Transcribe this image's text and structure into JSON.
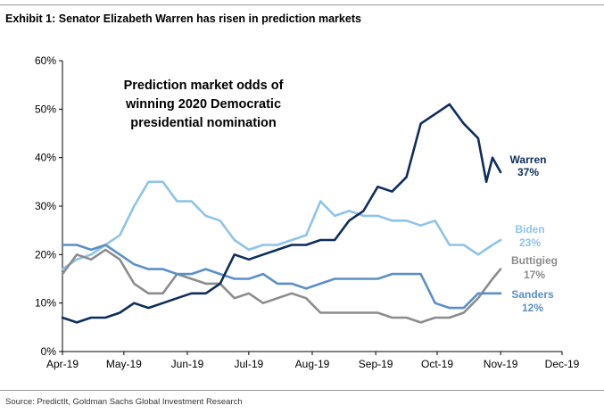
{
  "exhibit_title": "Exhibit 1: Senator Elizabeth Warren has risen in prediction markets",
  "source": "Source: PredictIt, Goldman Sachs Global Investment Research",
  "chart_data": {
    "type": "line",
    "title": "Prediction market odds of winning 2020 Democratic presidential nomination",
    "title_lines": [
      "Prediction market odds of",
      "winning 2020 Democratic",
      "presidential nomination"
    ],
    "xlabel": "",
    "ylabel": "",
    "ylim": [
      0,
      60
    ],
    "y_ticks": [
      0,
      10,
      20,
      30,
      40,
      50,
      60
    ],
    "y_tick_labels": [
      "0%",
      "10%",
      "20%",
      "30%",
      "40%",
      "50%",
      "60%"
    ],
    "x_range": [
      "2019-04-01",
      "2019-12-01"
    ],
    "x_ticks": [
      "2019-04-01",
      "2019-05-01",
      "2019-06-01",
      "2019-07-01",
      "2019-08-01",
      "2019-09-01",
      "2019-10-01",
      "2019-11-01",
      "2019-12-01"
    ],
    "x_tick_labels": [
      "Apr-19",
      "May-19",
      "Jun-19",
      "Jul-19",
      "Aug-19",
      "Sep-19",
      "Oct-19",
      "Nov-19",
      "Dec-19"
    ],
    "grid": false,
    "series": [
      {
        "name": "Warren",
        "end_label": "37%",
        "color": "#0d2d5c",
        "points": [
          [
            "2019-04-01",
            7
          ],
          [
            "2019-04-08",
            6
          ],
          [
            "2019-04-15",
            7
          ],
          [
            "2019-04-22",
            7
          ],
          [
            "2019-04-29",
            8
          ],
          [
            "2019-05-06",
            10
          ],
          [
            "2019-05-13",
            9
          ],
          [
            "2019-05-20",
            10
          ],
          [
            "2019-05-27",
            11
          ],
          [
            "2019-06-03",
            12
          ],
          [
            "2019-06-10",
            12
          ],
          [
            "2019-06-17",
            14
          ],
          [
            "2019-06-24",
            20
          ],
          [
            "2019-07-01",
            19
          ],
          [
            "2019-07-08",
            20
          ],
          [
            "2019-07-15",
            21
          ],
          [
            "2019-07-22",
            22
          ],
          [
            "2019-07-29",
            22
          ],
          [
            "2019-08-05",
            23
          ],
          [
            "2019-08-12",
            23
          ],
          [
            "2019-08-19",
            27
          ],
          [
            "2019-08-26",
            29
          ],
          [
            "2019-09-02",
            34
          ],
          [
            "2019-09-09",
            33
          ],
          [
            "2019-09-16",
            36
          ],
          [
            "2019-09-23",
            47
          ],
          [
            "2019-09-30",
            49
          ],
          [
            "2019-10-07",
            51
          ],
          [
            "2019-10-14",
            47
          ],
          [
            "2019-10-21",
            44
          ],
          [
            "2019-10-25",
            35
          ],
          [
            "2019-10-28",
            40
          ],
          [
            "2019-11-01",
            37
          ]
        ]
      },
      {
        "name": "Biden",
        "end_label": "23%",
        "color": "#8fc3e8",
        "points": [
          [
            "2019-04-01",
            17
          ],
          [
            "2019-04-08",
            19
          ],
          [
            "2019-04-15",
            20
          ],
          [
            "2019-04-22",
            22
          ],
          [
            "2019-04-29",
            24
          ],
          [
            "2019-05-06",
            30
          ],
          [
            "2019-05-13",
            35
          ],
          [
            "2019-05-20",
            35
          ],
          [
            "2019-05-27",
            31
          ],
          [
            "2019-06-03",
            31
          ],
          [
            "2019-06-10",
            28
          ],
          [
            "2019-06-17",
            27
          ],
          [
            "2019-06-24",
            23
          ],
          [
            "2019-07-01",
            21
          ],
          [
            "2019-07-08",
            22
          ],
          [
            "2019-07-15",
            22
          ],
          [
            "2019-07-22",
            23
          ],
          [
            "2019-07-29",
            24
          ],
          [
            "2019-08-05",
            31
          ],
          [
            "2019-08-12",
            28
          ],
          [
            "2019-08-19",
            29
          ],
          [
            "2019-08-26",
            28
          ],
          [
            "2019-09-02",
            28
          ],
          [
            "2019-09-09",
            27
          ],
          [
            "2019-09-16",
            27
          ],
          [
            "2019-09-23",
            26
          ],
          [
            "2019-09-30",
            27
          ],
          [
            "2019-10-07",
            22
          ],
          [
            "2019-10-14",
            22
          ],
          [
            "2019-10-21",
            20
          ],
          [
            "2019-10-28",
            22
          ],
          [
            "2019-11-01",
            23
          ]
        ]
      },
      {
        "name": "Buttigieg",
        "end_label": "17%",
        "color": "#8c8c8c",
        "points": [
          [
            "2019-04-01",
            16
          ],
          [
            "2019-04-08",
            20
          ],
          [
            "2019-04-15",
            19
          ],
          [
            "2019-04-22",
            21
          ],
          [
            "2019-04-29",
            19
          ],
          [
            "2019-05-06",
            14
          ],
          [
            "2019-05-13",
            12
          ],
          [
            "2019-05-20",
            12
          ],
          [
            "2019-05-27",
            16
          ],
          [
            "2019-06-03",
            15
          ],
          [
            "2019-06-10",
            14
          ],
          [
            "2019-06-17",
            14
          ],
          [
            "2019-06-24",
            11
          ],
          [
            "2019-07-01",
            12
          ],
          [
            "2019-07-08",
            10
          ],
          [
            "2019-07-15",
            11
          ],
          [
            "2019-07-22",
            12
          ],
          [
            "2019-07-29",
            11
          ],
          [
            "2019-08-05",
            8
          ],
          [
            "2019-08-12",
            8
          ],
          [
            "2019-08-19",
            8
          ],
          [
            "2019-08-26",
            8
          ],
          [
            "2019-09-02",
            8
          ],
          [
            "2019-09-09",
            7
          ],
          [
            "2019-09-16",
            7
          ],
          [
            "2019-09-23",
            6
          ],
          [
            "2019-09-30",
            7
          ],
          [
            "2019-10-07",
            7
          ],
          [
            "2019-10-14",
            8
          ],
          [
            "2019-10-21",
            11
          ],
          [
            "2019-10-28",
            15
          ],
          [
            "2019-11-01",
            17
          ]
        ]
      },
      {
        "name": "Sanders",
        "end_label": "12%",
        "color": "#5b8fc7",
        "points": [
          [
            "2019-04-01",
            22
          ],
          [
            "2019-04-08",
            22
          ],
          [
            "2019-04-15",
            21
          ],
          [
            "2019-04-22",
            22
          ],
          [
            "2019-04-29",
            20
          ],
          [
            "2019-05-06",
            18
          ],
          [
            "2019-05-13",
            17
          ],
          [
            "2019-05-20",
            17
          ],
          [
            "2019-05-27",
            16
          ],
          [
            "2019-06-03",
            16
          ],
          [
            "2019-06-10",
            17
          ],
          [
            "2019-06-17",
            16
          ],
          [
            "2019-06-24",
            15
          ],
          [
            "2019-07-01",
            15
          ],
          [
            "2019-07-08",
            16
          ],
          [
            "2019-07-15",
            14
          ],
          [
            "2019-07-22",
            14
          ],
          [
            "2019-07-29",
            13
          ],
          [
            "2019-08-05",
            14
          ],
          [
            "2019-08-12",
            15
          ],
          [
            "2019-08-19",
            15
          ],
          [
            "2019-08-26",
            15
          ],
          [
            "2019-09-02",
            15
          ],
          [
            "2019-09-09",
            16
          ],
          [
            "2019-09-16",
            16
          ],
          [
            "2019-09-23",
            16
          ],
          [
            "2019-09-30",
            10
          ],
          [
            "2019-10-07",
            9
          ],
          [
            "2019-10-14",
            9
          ],
          [
            "2019-10-21",
            12
          ],
          [
            "2019-10-28",
            12
          ],
          [
            "2019-11-01",
            12
          ]
        ]
      }
    ]
  }
}
